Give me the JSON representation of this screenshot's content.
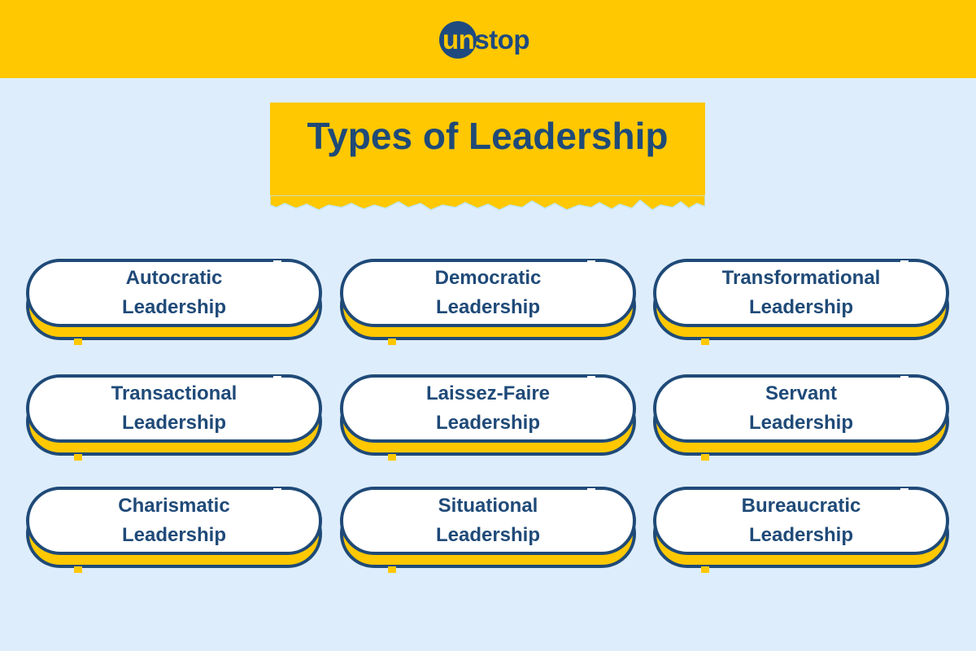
{
  "brand": {
    "logo_text_part1": "un",
    "logo_text_part2": "stop",
    "colors": {
      "yellow": "#ffc800",
      "navy": "#1f4a78",
      "background": "#deedfc"
    }
  },
  "title": "Types of Leadership",
  "cards": [
    {
      "line1": "Autocratic",
      "line2": "Leadership"
    },
    {
      "line1": "Democratic",
      "line2": "Leadership"
    },
    {
      "line1": "Transformational",
      "line2": "Leadership"
    },
    {
      "line1": "Transactional",
      "line2": "Leadership"
    },
    {
      "line1": "Laissez-Faire",
      "line2": "Leadership"
    },
    {
      "line1": "Servant",
      "line2": "Leadership"
    },
    {
      "line1": "Charismatic",
      "line2": "Leadership"
    },
    {
      "line1": "Situational",
      "line2": "Leadership"
    },
    {
      "line1": "Bureaucratic",
      "line2": "Leadership"
    }
  ]
}
